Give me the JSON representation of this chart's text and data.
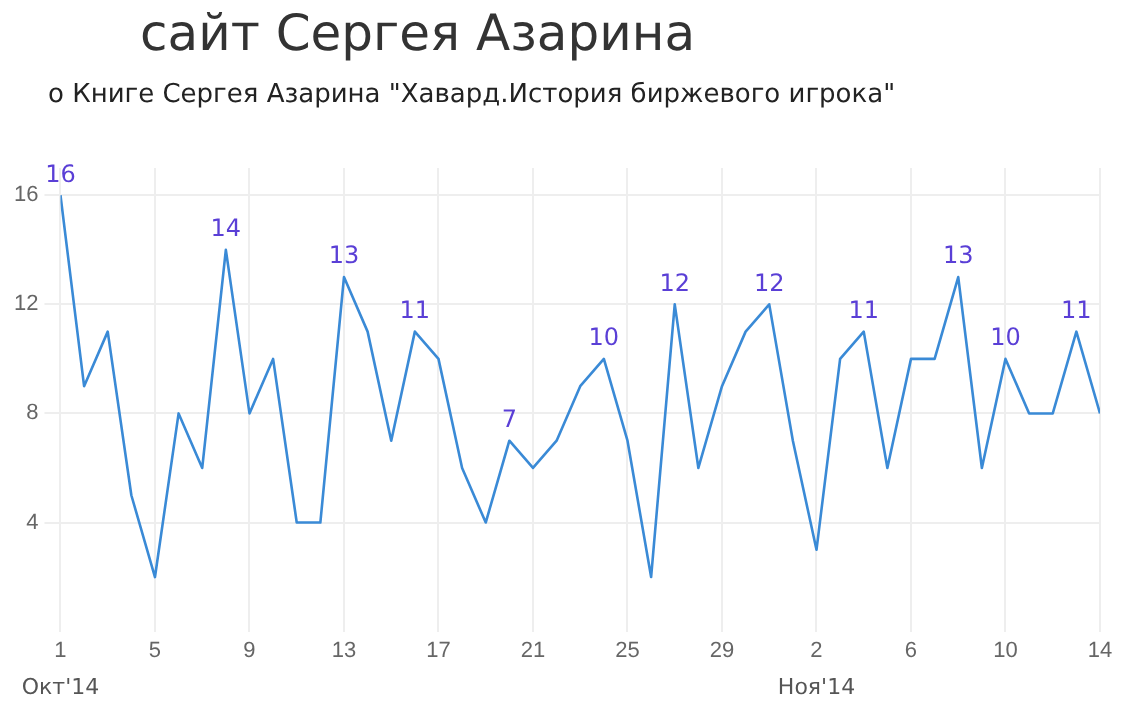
{
  "chart_data": {
    "type": "line",
    "title": "сайт Сергея Азарина",
    "subtitle": "о Книге Сергея Азарина \"Хавард.История биржевого игрока\"",
    "x": [
      "2014-10-01",
      "2014-10-02",
      "2014-10-03",
      "2014-10-04",
      "2014-10-05",
      "2014-10-06",
      "2014-10-07",
      "2014-10-08",
      "2014-10-09",
      "2014-10-10",
      "2014-10-11",
      "2014-10-12",
      "2014-10-13",
      "2014-10-14",
      "2014-10-15",
      "2014-10-16",
      "2014-10-17",
      "2014-10-18",
      "2014-10-19",
      "2014-10-20",
      "2014-10-21",
      "2014-10-22",
      "2014-10-23",
      "2014-10-24",
      "2014-10-25",
      "2014-10-26",
      "2014-10-27",
      "2014-10-28",
      "2014-10-29",
      "2014-10-30",
      "2014-10-31",
      "2014-11-01",
      "2014-11-02",
      "2014-11-03",
      "2014-11-04",
      "2014-11-05",
      "2014-11-06",
      "2014-11-07",
      "2014-11-08",
      "2014-11-09",
      "2014-11-10",
      "2014-11-11",
      "2014-11-12",
      "2014-11-13",
      "2014-11-14"
    ],
    "series": [
      {
        "color": "#3a8ad6",
        "values": [
          16,
          9,
          11,
          5,
          2,
          8,
          6,
          14,
          8,
          10,
          4,
          4,
          13,
          11,
          7,
          11,
          10,
          6,
          4,
          7,
          6,
          7,
          9,
          10,
          7,
          2,
          12,
          6,
          9,
          11,
          12,
          7,
          3,
          10,
          11,
          6,
          10,
          10,
          13,
          6,
          10,
          8,
          8,
          11,
          8
        ],
        "value_labels": [
          "16",
          null,
          null,
          null,
          null,
          null,
          null,
          "14",
          null,
          null,
          null,
          null,
          "13",
          null,
          null,
          "11",
          null,
          null,
          null,
          "7",
          null,
          null,
          null,
          "10",
          null,
          null,
          "12",
          null,
          null,
          null,
          "12",
          null,
          null,
          null,
          "11",
          null,
          null,
          null,
          "13",
          null,
          "10",
          null,
          null,
          "11",
          null
        ]
      }
    ],
    "xlim": [
      "2014-10-01",
      "2014-11-14"
    ],
    "xticks": [
      {
        "value": "2014-10-01",
        "label": "1"
      },
      {
        "value": "2014-10-05",
        "label": "5"
      },
      {
        "value": "2014-10-09",
        "label": "9"
      },
      {
        "value": "2014-10-13",
        "label": "13"
      },
      {
        "value": "2014-10-17",
        "label": "17"
      },
      {
        "value": "2014-10-21",
        "label": "21"
      },
      {
        "value": "2014-10-25",
        "label": "25"
      },
      {
        "value": "2014-10-29",
        "label": "29"
      },
      {
        "value": "2014-11-02",
        "label": "2"
      },
      {
        "value": "2014-11-06",
        "label": "6"
      },
      {
        "value": "2014-11-10",
        "label": "10"
      },
      {
        "value": "2014-11-14",
        "label": "14"
      }
    ],
    "ylim": [
      0,
      17
    ],
    "yticks": [
      4,
      8,
      12,
      16
    ],
    "grid": true,
    "legend": false,
    "marker": "none",
    "line_style": "solid",
    "annotations": [
      "Окт'14",
      "Ноя'14"
    ]
  }
}
